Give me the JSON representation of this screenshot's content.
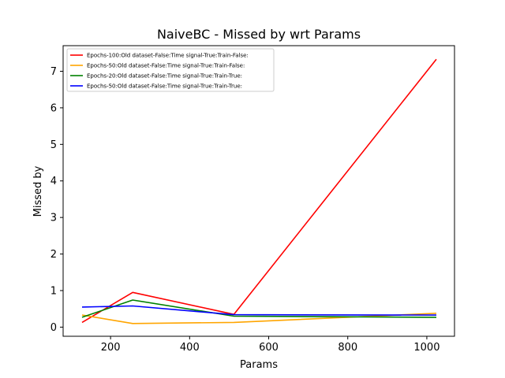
{
  "chart_data": {
    "type": "line",
    "title": "NaiveBC - Missed by wrt Params",
    "xlabel": "Params",
    "ylabel": "Missed by",
    "xlim": [
      80,
      1070
    ],
    "ylim": [
      -0.25,
      7.7
    ],
    "xticks": [
      200,
      400,
      600,
      800,
      1000
    ],
    "yticks": [
      0,
      1,
      2,
      3,
      4,
      5,
      6,
      7
    ],
    "grid": false,
    "legend_position": "upper-left",
    "x": [
      128,
      256,
      512,
      1024
    ],
    "series": [
      {
        "name": "Epochs-100:Old dataset-False:Time signal-True:Train-False:",
        "color": "#ff0000",
        "values": [
          0.13,
          0.95,
          0.35,
          7.33
        ]
      },
      {
        "name": "Epochs-50:Old dataset-False:Time signal-True:Train-False:",
        "color": "#ffa500",
        "values": [
          0.33,
          0.1,
          0.13,
          0.38
        ]
      },
      {
        "name": "Epochs-20:Old dataset-False:Time signal-True:Train-True:",
        "color": "#008000",
        "values": [
          0.27,
          0.74,
          0.3,
          0.27
        ]
      },
      {
        "name": "Epochs-50:Old dataset-False:Time signal-True:Train-True:",
        "color": "#0000ff",
        "values": [
          0.55,
          0.58,
          0.34,
          0.33
        ]
      }
    ]
  }
}
